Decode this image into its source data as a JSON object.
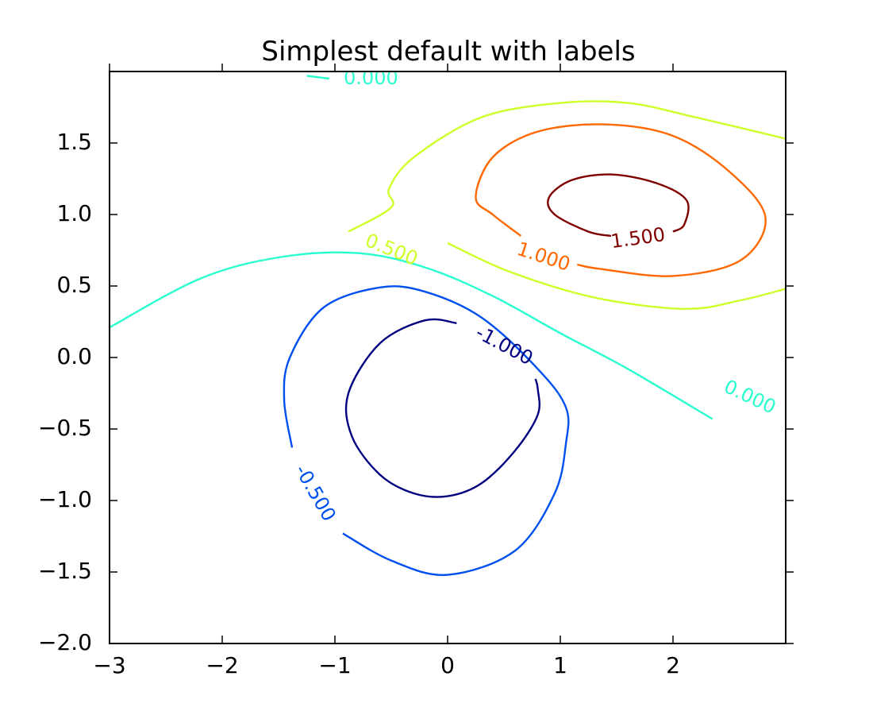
{
  "chart_data": {
    "type": "contour",
    "title": "Simplest default with labels",
    "xlabel": "",
    "ylabel": "",
    "xlim": [
      -3,
      3
    ],
    "ylim": [
      -2,
      2
    ],
    "x_ticks": [
      {
        "v": -3,
        "label": "−3"
      },
      {
        "v": -2,
        "label": "−2"
      },
      {
        "v": -1,
        "label": "−1"
      },
      {
        "v": 0,
        "label": "0"
      },
      {
        "v": 1,
        "label": "1"
      },
      {
        "v": 2,
        "label": "2"
      }
    ],
    "y_ticks": [
      {
        "v": -2.0,
        "label": "−2.0"
      },
      {
        "v": -1.5,
        "label": "−1.5"
      },
      {
        "v": -1.0,
        "label": "−1.0"
      },
      {
        "v": -0.5,
        "label": "−0.5"
      },
      {
        "v": 0.0,
        "label": "0.0"
      },
      {
        "v": 0.5,
        "label": "0.5"
      },
      {
        "v": 1.0,
        "label": "1.0"
      },
      {
        "v": 1.5,
        "label": "1.5"
      }
    ],
    "grid": false,
    "levels": [
      {
        "value": -1.0,
        "label": "-1.000",
        "color": "#000080",
        "segments": [
          [
            [
              0.08,
              0.24
            ],
            [
              -0.2,
              0.26
            ],
            [
              -0.6,
              0.1
            ],
            [
              -0.88,
              -0.25
            ],
            [
              -0.85,
              -0.55
            ],
            [
              -0.6,
              -0.82
            ],
            [
              -0.3,
              -0.95
            ],
            [
              0.0,
              -0.97
            ],
            [
              0.3,
              -0.88
            ],
            [
              0.6,
              -0.65
            ],
            [
              0.8,
              -0.4
            ],
            [
              0.8,
              -0.22
            ],
            [
              0.78,
              -0.15
            ]
          ]
        ],
        "labels_at": [
          {
            "x": 0.5,
            "y": 0.08,
            "angle": 28
          }
        ]
      },
      {
        "value": -0.5,
        "label": "-0.500",
        "color": "#0050f0",
        "segments": [
          [
            [
              -1.38,
              -0.63
            ],
            [
              -1.45,
              -0.3
            ],
            [
              -1.4,
              0.0
            ],
            [
              -1.1,
              0.35
            ],
            [
              -0.6,
              0.49
            ],
            [
              -0.2,
              0.46
            ],
            [
              0.3,
              0.28
            ],
            [
              0.8,
              -0.08
            ],
            [
              1.05,
              -0.35
            ],
            [
              1.05,
              -0.6
            ],
            [
              0.95,
              -0.95
            ],
            [
              0.6,
              -1.35
            ],
            [
              0.0,
              -1.52
            ],
            [
              -0.5,
              -1.42
            ],
            [
              -0.93,
              -1.23
            ]
          ],
          [
            [
              -0.93,
              -1.23
            ],
            [
              -0.93,
              -1.23
            ]
          ]
        ],
        "labels_at": [
          {
            "x": -1.18,
            "y": -0.95,
            "angle": 60
          }
        ]
      },
      {
        "value": 0.0,
        "label": "0.000",
        "color": "#29ffce",
        "segments": [
          [
            [
              -3.0,
              0.21
            ],
            [
              -2.2,
              0.55
            ],
            [
              -1.5,
              0.7
            ],
            [
              -0.8,
              0.73
            ],
            [
              -0.2,
              0.63
            ],
            [
              0.4,
              0.43
            ],
            [
              1.0,
              0.17
            ],
            [
              1.6,
              -0.08
            ],
            [
              2.35,
              -0.43
            ]
          ],
          [
            [
              -1.25,
              1.97
            ],
            [
              -1.05,
              1.95
            ]
          ]
        ],
        "labels_at": [
          {
            "x": 2.68,
            "y": -0.28,
            "angle": 25
          },
          {
            "x": -0.68,
            "y": 1.95,
            "angle": 0
          }
        ]
      },
      {
        "value": 0.5,
        "label": "0.500",
        "color": "#ceff29",
        "segments": [
          [
            [
              -0.88,
              0.88
            ],
            [
              -0.5,
              1.05
            ],
            [
              -0.52,
              1.18
            ],
            [
              -0.3,
              1.4
            ],
            [
              0.3,
              1.68
            ],
            [
              1.0,
              1.78
            ],
            [
              1.6,
              1.78
            ],
            [
              2.2,
              1.68
            ],
            [
              3.0,
              1.53
            ]
          ],
          [
            [
              0.0,
              0.8
            ],
            [
              0.55,
              0.6
            ],
            [
              1.3,
              0.42
            ],
            [
              2.1,
              0.34
            ],
            [
              2.6,
              0.4
            ],
            [
              3.0,
              0.48
            ]
          ]
        ],
        "labels_at": [
          {
            "x": -0.5,
            "y": 0.75,
            "angle": 22
          }
        ]
      },
      {
        "value": 1.0,
        "label": "1.000",
        "color": "#ff6800",
        "segments": [
          [
            [
              0.65,
              0.85
            ],
            [
              0.4,
              1.0
            ],
            [
              0.25,
              1.12
            ],
            [
              0.4,
              1.4
            ],
            [
              0.8,
              1.58
            ],
            [
              1.4,
              1.63
            ],
            [
              2.0,
              1.55
            ],
            [
              2.5,
              1.3
            ],
            [
              2.82,
              0.98
            ],
            [
              2.6,
              0.68
            ],
            [
              2.0,
              0.57
            ],
            [
              1.35,
              0.62
            ],
            [
              1.15,
              0.65
            ]
          ]
        ],
        "labels_at": [
          {
            "x": 0.85,
            "y": 0.7,
            "angle": 18
          }
        ]
      },
      {
        "value": 1.5,
        "label": "1.500",
        "color": "#800000",
        "segments": [
          [
            [
              1.45,
              0.85
            ],
            [
              1.25,
              0.88
            ],
            [
              0.95,
              1.0
            ],
            [
              0.9,
              1.12
            ],
            [
              1.1,
              1.24
            ],
            [
              1.45,
              1.28
            ],
            [
              1.85,
              1.22
            ],
            [
              2.12,
              1.1
            ],
            [
              2.1,
              0.93
            ],
            [
              2.0,
              0.88
            ]
          ]
        ],
        "labels_at": [
          {
            "x": 1.69,
            "y": 0.83,
            "angle": -8
          }
        ]
      }
    ]
  }
}
